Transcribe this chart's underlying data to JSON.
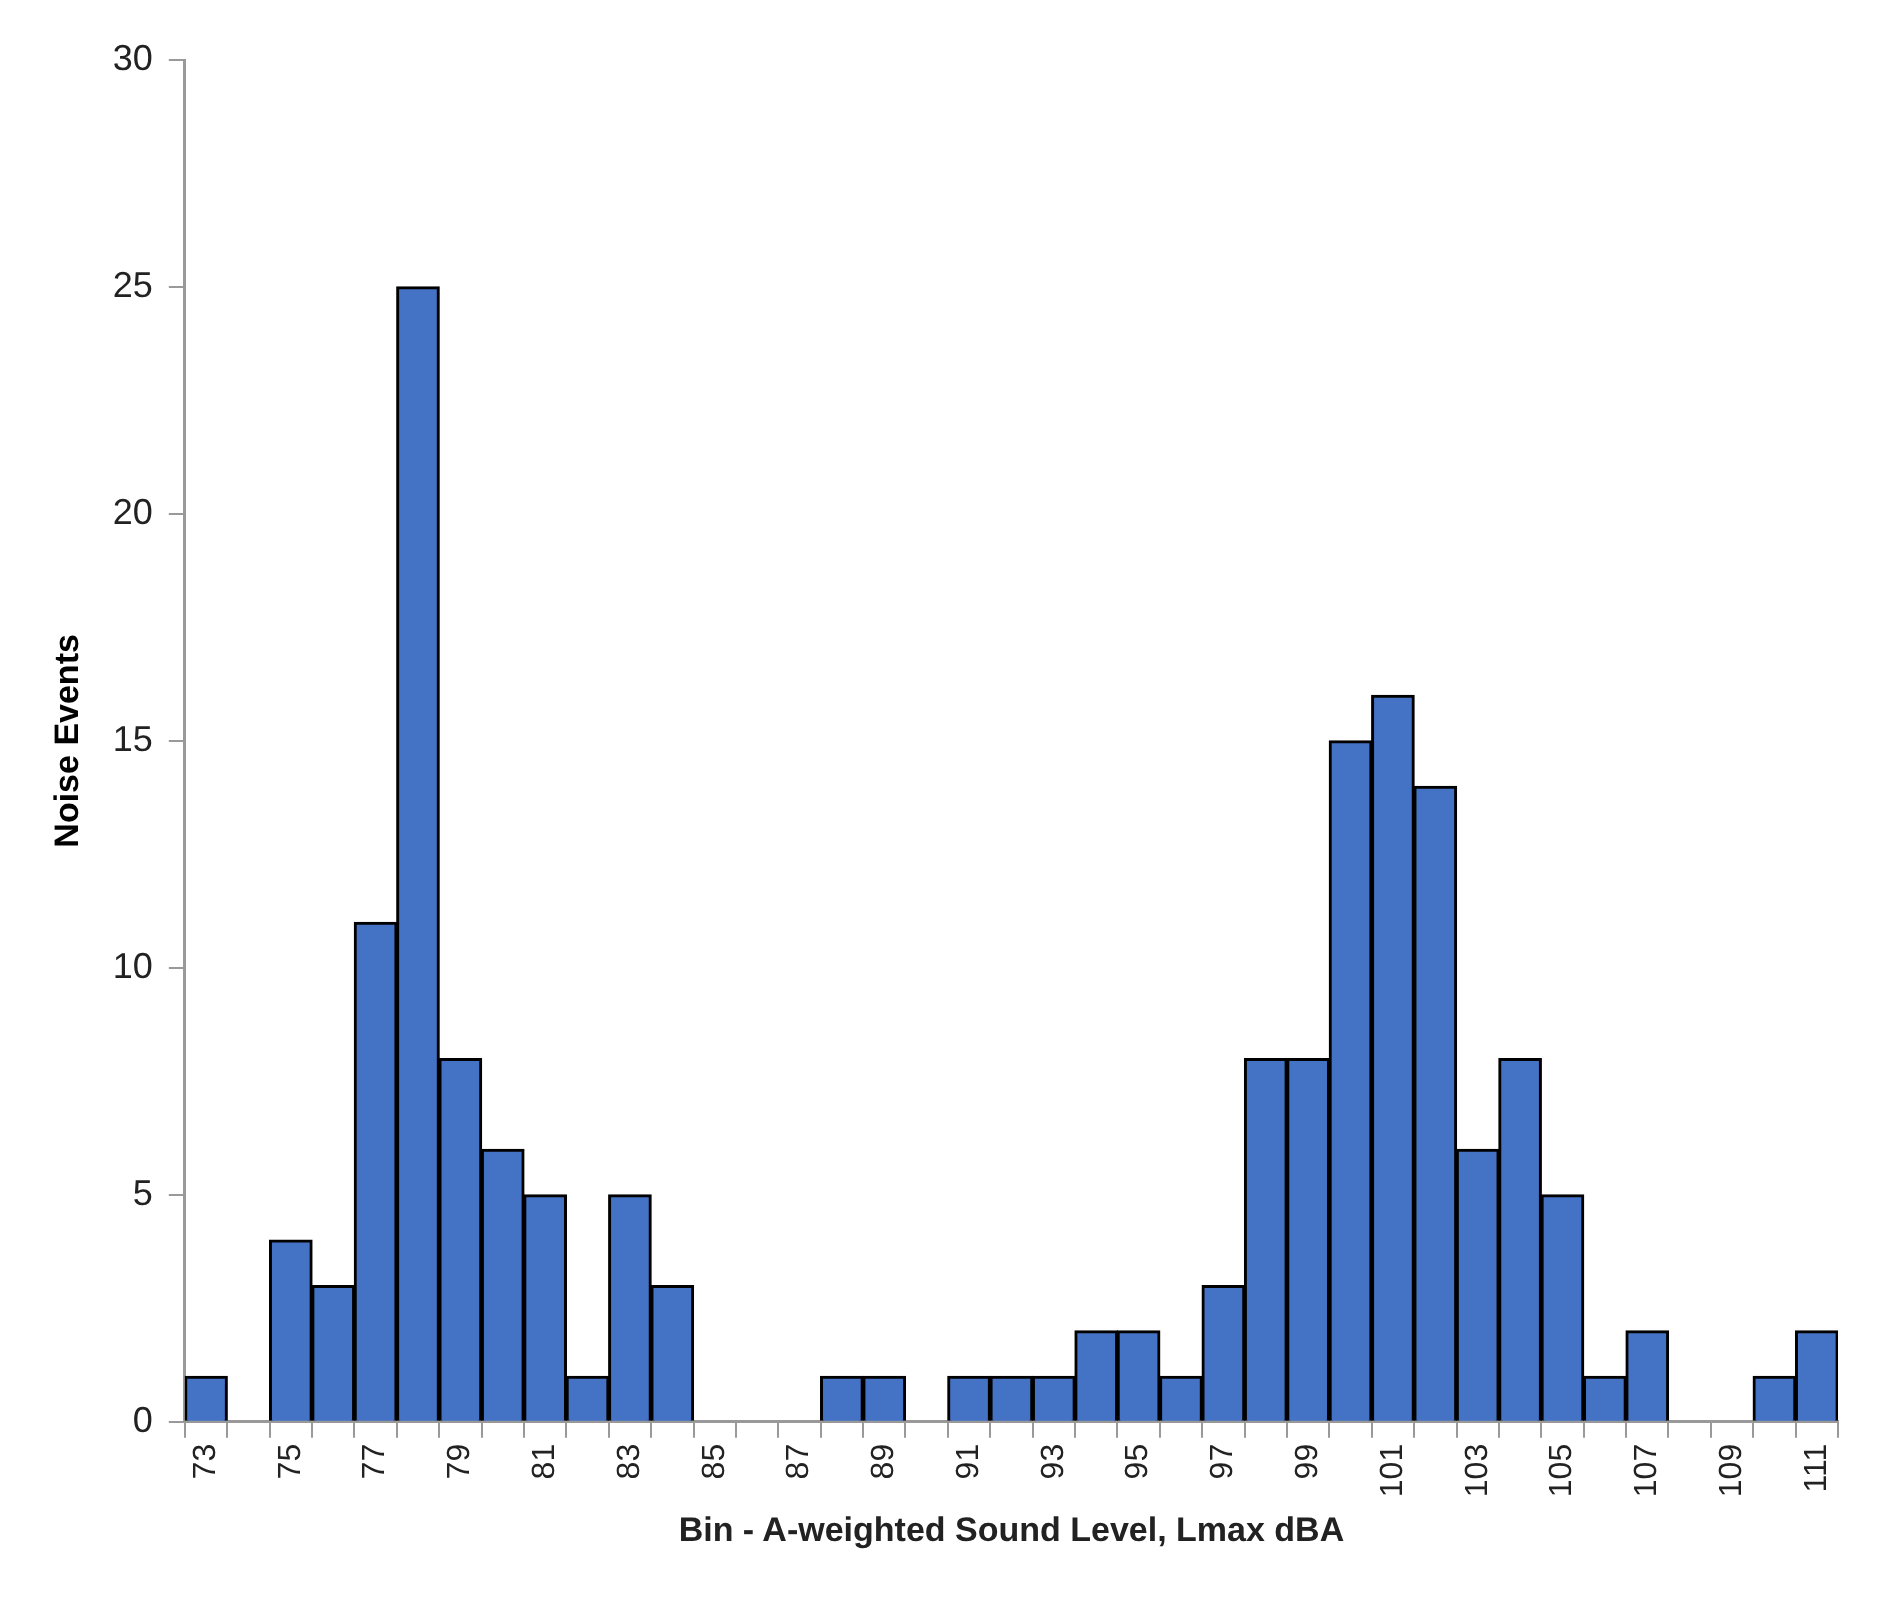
{
  "chart_data": {
    "type": "bar",
    "xlabel": "Bin - A-weighted Sound Level, Lmax dBA",
    "ylabel": "Noise Events",
    "categories": [
      "73",
      null,
      "75",
      null,
      "77",
      null,
      "79",
      null,
      "81",
      null,
      "83",
      null,
      "85",
      null,
      "87",
      null,
      "89",
      null,
      "91",
      null,
      "93",
      null,
      "95",
      null,
      "97",
      null,
      "99",
      null,
      "101",
      null,
      "103",
      null,
      "105",
      null,
      "107",
      null,
      "109",
      null,
      "111"
    ],
    "values": [
      1,
      0,
      4,
      3,
      11,
      25,
      8,
      6,
      5,
      1,
      5,
      3,
      0,
      0,
      0,
      1,
      1,
      0,
      1,
      1,
      1,
      2,
      2,
      1,
      3,
      8,
      8,
      15,
      16,
      14,
      6,
      8,
      5,
      1,
      2,
      0,
      0,
      1,
      2
    ],
    "color": "#4472c4",
    "ylim": [
      0,
      30
    ],
    "yticks": [
      0,
      5,
      10,
      15,
      20,
      25,
      30
    ],
    "grid": false,
    "legend": false
  }
}
